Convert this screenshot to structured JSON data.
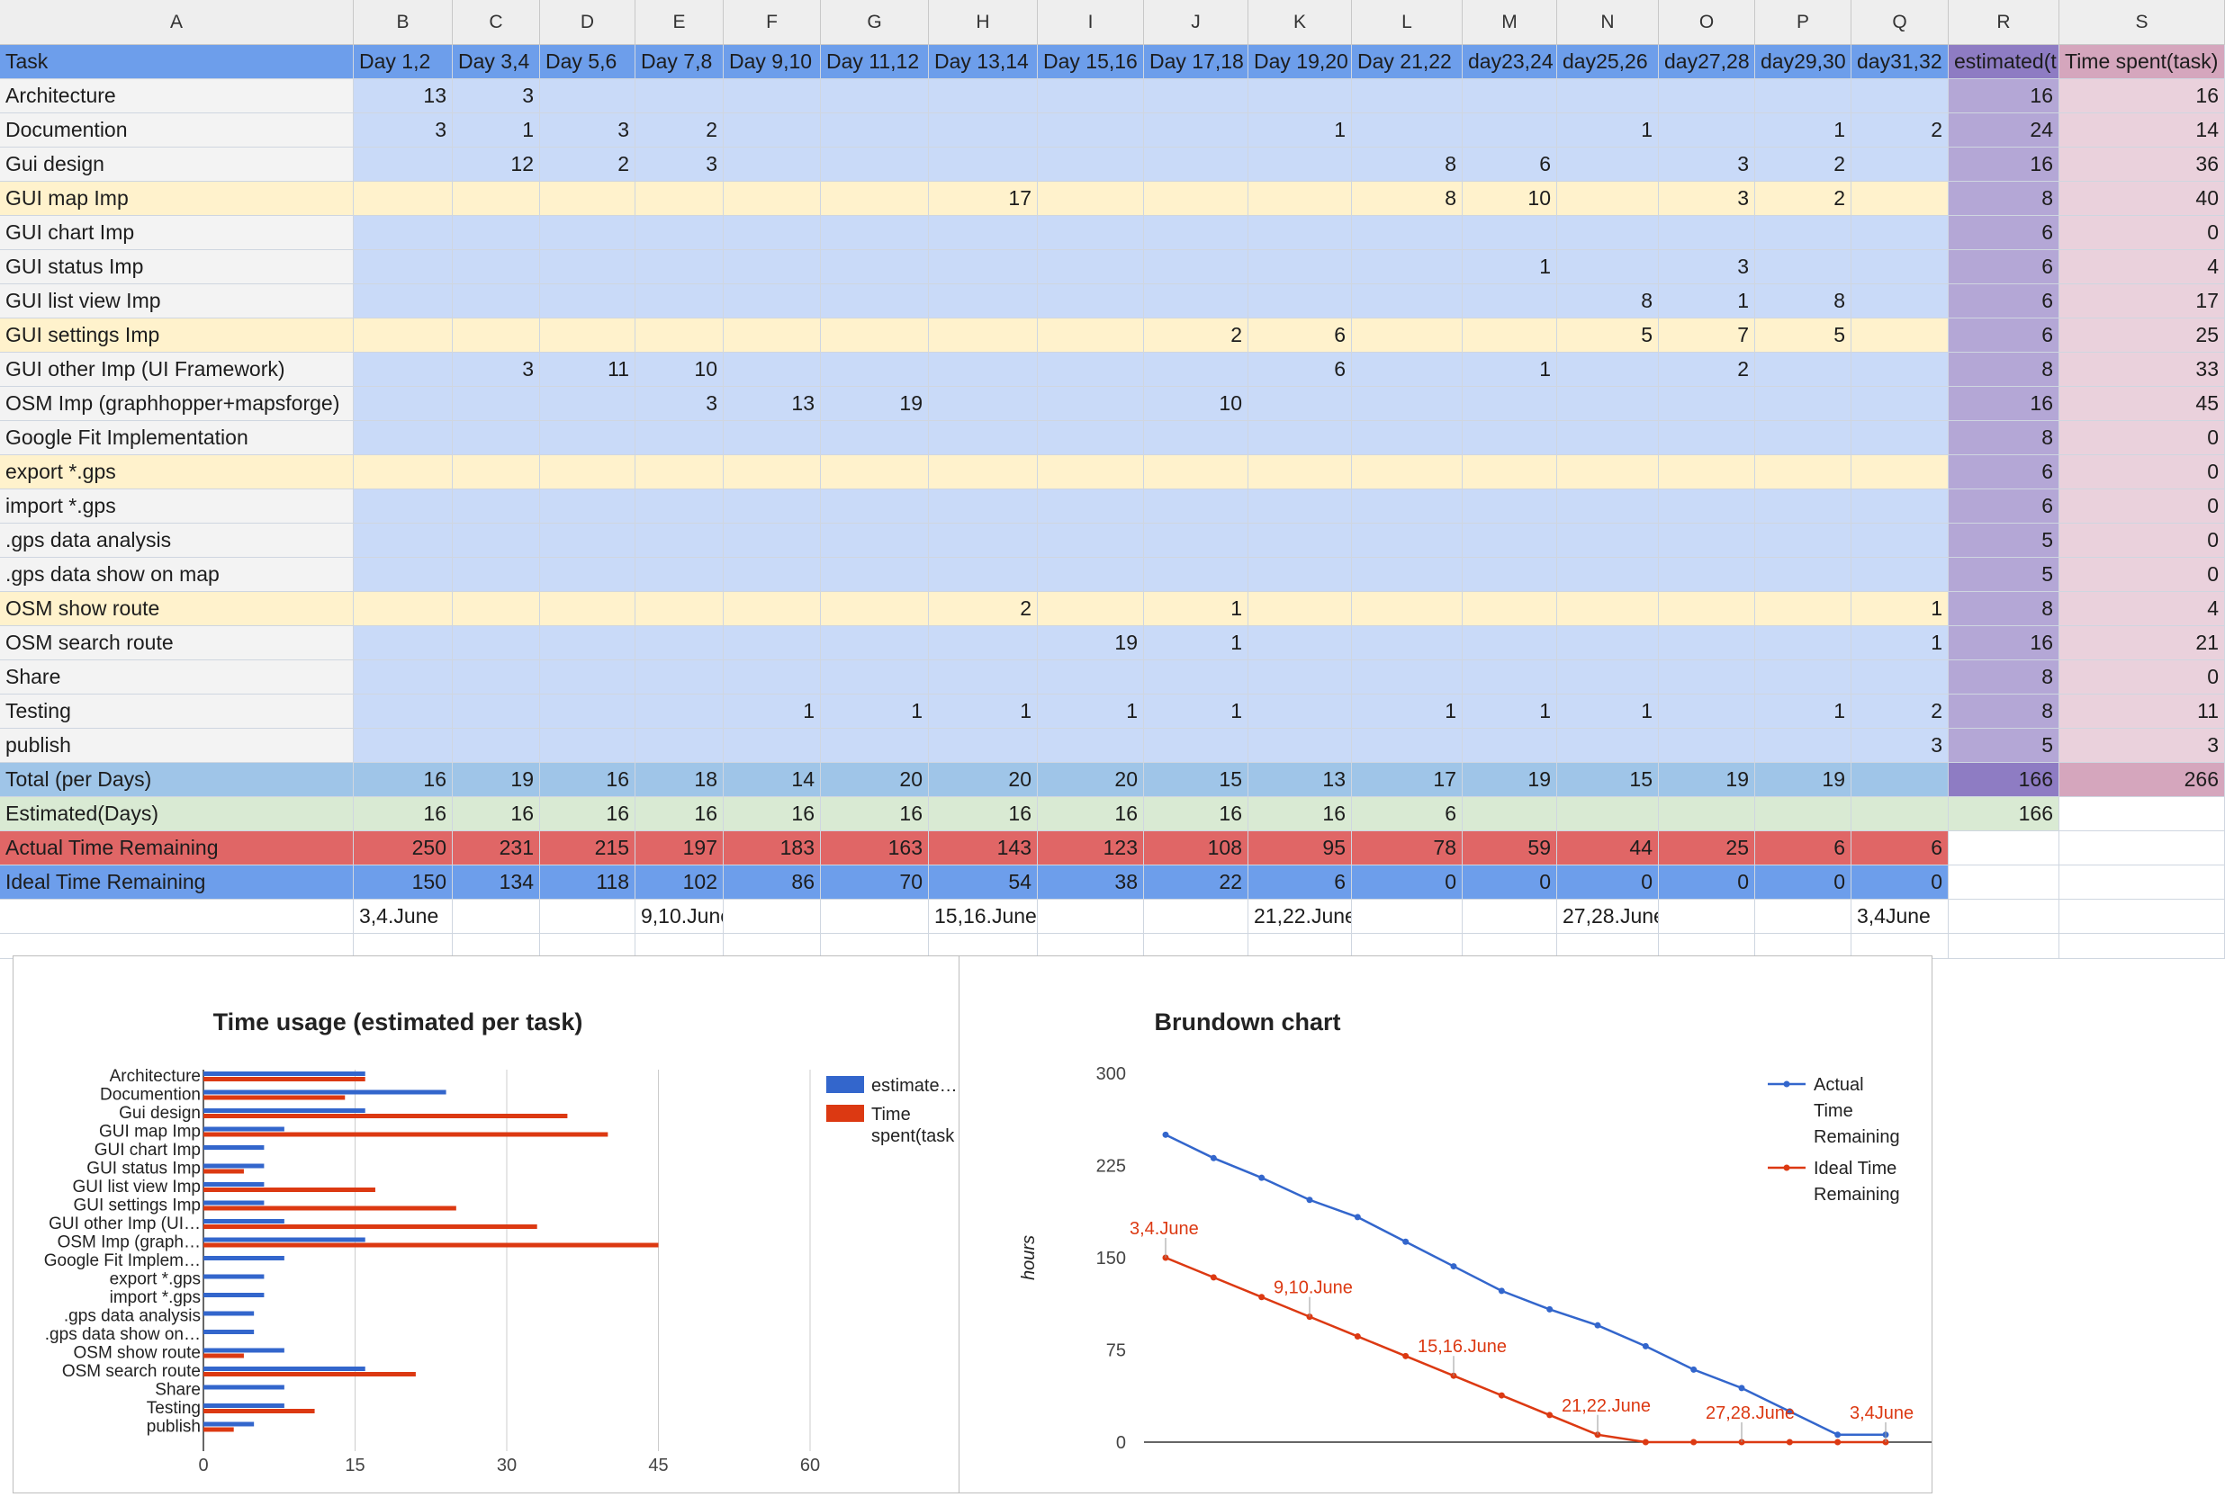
{
  "colors": {
    "header_bg": "#eeeeee",
    "task_header_row": "#6d9eeb",
    "data_blue": "#c9daf8",
    "data_yellow": "#fff2cc",
    "label_gray": "#f3f3f3",
    "estimated_col": "#b4a7d6",
    "estimated_total": "#8e7cc3",
    "spent_col": "#ead1dc",
    "spent_total": "#d5a6bd",
    "total_row": "#9fc5e8",
    "estimated_row": "#d9ead3",
    "actual_row": "#e06666",
    "ideal_row": "#6d9eeb",
    "series_blue": "#3366cc",
    "series_red": "#dc3912"
  },
  "columns": [
    "A",
    "B",
    "C",
    "D",
    "E",
    "F",
    "G",
    "H",
    "I",
    "J",
    "K",
    "L",
    "M",
    "N",
    "O",
    "P",
    "Q",
    "R",
    "S"
  ],
  "header_row": [
    "Task",
    "Day 1,2",
    "Day 3,4",
    "Day 5,6",
    "Day 7,8",
    "Day 9,10",
    "Day 11,12",
    "Day 13,14",
    "Day 15,16",
    "Day 17,18",
    "Day 19,20",
    "Day 21,22",
    "day23,24",
    "day25,26",
    "day27,28",
    "day29,30",
    "day31,32",
    "estimated(t",
    "Time spent(task)"
  ],
  "tasks": [
    {
      "name": "Architecture",
      "style": "blue",
      "days": [
        "13",
        "3",
        "",
        "",
        "",
        "",
        "",
        "",
        "",
        "",
        "",
        "",
        "",
        "",
        "",
        ""
      ],
      "estimated": "16",
      "spent": "16"
    },
    {
      "name": "Documention",
      "style": "blue",
      "days": [
        "3",
        "1",
        "3",
        "2",
        "",
        "",
        "",
        "",
        "",
        "1",
        "",
        "",
        "1",
        "",
        "1",
        "2"
      ],
      "estimated": "24",
      "spent": "14"
    },
    {
      "name": "Gui design",
      "style": "blue",
      "days": [
        "",
        "12",
        "2",
        "3",
        "",
        "",
        "",
        "",
        "",
        "",
        "8",
        "6",
        "",
        "3",
        "2",
        ""
      ],
      "estimated": "16",
      "spent": "36"
    },
    {
      "name": "GUI map Imp",
      "style": "yellow",
      "days": [
        "",
        "",
        "",
        "",
        "",
        "",
        "17",
        "",
        "",
        "",
        "8",
        "10",
        "",
        "3",
        "2",
        ""
      ],
      "estimated": "8",
      "spent": "40"
    },
    {
      "name": "GUI chart Imp",
      "style": "blue",
      "days": [
        "",
        "",
        "",
        "",
        "",
        "",
        "",
        "",
        "",
        "",
        "",
        "",
        "",
        "",
        "",
        ""
      ],
      "estimated": "6",
      "spent": "0"
    },
    {
      "name": "GUI status Imp",
      "style": "blue",
      "days": [
        "",
        "",
        "",
        "",
        "",
        "",
        "",
        "",
        "",
        "",
        "",
        "1",
        "",
        "3",
        "",
        ""
      ],
      "estimated": "6",
      "spent": "4"
    },
    {
      "name": "GUI list view Imp",
      "style": "blue",
      "days": [
        "",
        "",
        "",
        "",
        "",
        "",
        "",
        "",
        "",
        "",
        "",
        "",
        "8",
        "1",
        "8",
        ""
      ],
      "estimated": "6",
      "spent": "17"
    },
    {
      "name": "GUI settings Imp",
      "style": "yellow",
      "days": [
        "",
        "",
        "",
        "",
        "",
        "",
        "",
        "",
        "2",
        "6",
        "",
        "",
        "5",
        "7",
        "5",
        ""
      ],
      "estimated": "6",
      "spent": "25"
    },
    {
      "name": "GUI other Imp (UI Framework)",
      "style": "blue",
      "days": [
        "",
        "3",
        "11",
        "10",
        "",
        "",
        "",
        "",
        "",
        "6",
        "",
        "1",
        "",
        "2",
        "",
        ""
      ],
      "estimated": "8",
      "spent": "33"
    },
    {
      "name": "OSM Imp (graphhopper+mapsforge)",
      "style": "blue",
      "days": [
        "",
        "",
        "",
        "3",
        "13",
        "19",
        "",
        "",
        "10",
        "",
        "",
        "",
        "",
        "",
        "",
        ""
      ],
      "estimated": "16",
      "spent": "45"
    },
    {
      "name": "Google Fit Implementation",
      "style": "blue",
      "days": [
        "",
        "",
        "",
        "",
        "",
        "",
        "",
        "",
        "",
        "",
        "",
        "",
        "",
        "",
        "",
        ""
      ],
      "estimated": "8",
      "spent": "0"
    },
    {
      "name": "export *.gps",
      "style": "yellow",
      "days": [
        "",
        "",
        "",
        "",
        "",
        "",
        "",
        "",
        "",
        "",
        "",
        "",
        "",
        "",
        "",
        ""
      ],
      "estimated": "6",
      "spent": "0"
    },
    {
      "name": "import *.gps",
      "style": "blue",
      "days": [
        "",
        "",
        "",
        "",
        "",
        "",
        "",
        "",
        "",
        "",
        "",
        "",
        "",
        "",
        "",
        ""
      ],
      "estimated": "6",
      "spent": "0"
    },
    {
      "name": ".gps data analysis",
      "style": "blue",
      "days": [
        "",
        "",
        "",
        "",
        "",
        "",
        "",
        "",
        "",
        "",
        "",
        "",
        "",
        "",
        "",
        ""
      ],
      "estimated": "5",
      "spent": "0"
    },
    {
      "name": ".gps data show on map",
      "style": "blue",
      "days": [
        "",
        "",
        "",
        "",
        "",
        "",
        "",
        "",
        "",
        "",
        "",
        "",
        "",
        "",
        "",
        ""
      ],
      "estimated": "5",
      "spent": "0"
    },
    {
      "name": "OSM show route",
      "style": "yellow",
      "days": [
        "",
        "",
        "",
        "",
        "",
        "",
        "2",
        "",
        "1",
        "",
        "",
        "",
        "",
        "",
        "",
        "1"
      ],
      "estimated": "8",
      "spent": "4"
    },
    {
      "name": "OSM search route",
      "style": "blue",
      "days": [
        "",
        "",
        "",
        "",
        "",
        "",
        "",
        "19",
        "1",
        "",
        "",
        "",
        "",
        "",
        "",
        "1"
      ],
      "estimated": "16",
      "spent": "21"
    },
    {
      "name": "Share",
      "style": "blue",
      "days": [
        "",
        "",
        "",
        "",
        "",
        "",
        "",
        "",
        "",
        "",
        "",
        "",
        "",
        "",
        "",
        ""
      ],
      "estimated": "8",
      "spent": "0"
    },
    {
      "name": "Testing",
      "style": "blue",
      "days": [
        "",
        "",
        "",
        "",
        "1",
        "1",
        "1",
        "1",
        "1",
        "",
        "1",
        "1",
        "1",
        "",
        "1",
        "2"
      ],
      "estimated": "8",
      "spent": "11"
    },
    {
      "name": "publish",
      "style": "blue",
      "days": [
        "",
        "",
        "",
        "",
        "",
        "",
        "",
        "",
        "",
        "",
        "",
        "",
        "",
        "",
        "",
        "3"
      ],
      "estimated": "5",
      "spent": "3"
    }
  ],
  "summary_rows": [
    {
      "label": "Total (per Days)",
      "style": "total",
      "values": [
        "16",
        "19",
        "16",
        "18",
        "14",
        "20",
        "20",
        "20",
        "15",
        "13",
        "17",
        "19",
        "15",
        "19",
        "19",
        ""
      ],
      "r": "166",
      "s": "266"
    },
    {
      "label": "Estimated(Days)",
      "style": "estimated",
      "values": [
        "16",
        "16",
        "16",
        "16",
        "16",
        "16",
        "16",
        "16",
        "16",
        "16",
        "6",
        "",
        "",
        "",
        "",
        ""
      ],
      "r": "166",
      "s": ""
    },
    {
      "label": "Actual Time Remaining",
      "style": "actual",
      "values": [
        "250",
        "231",
        "215",
        "197",
        "183",
        "163",
        "143",
        "123",
        "108",
        "95",
        "78",
        "59",
        "44",
        "25",
        "6",
        "6"
      ],
      "r": "",
      "s": ""
    },
    {
      "label": "Ideal Time Remaining",
      "style": "ideal",
      "values": [
        "150",
        "134",
        "118",
        "102",
        "86",
        "70",
        "54",
        "38",
        "22",
        "6",
        "0",
        "0",
        "0",
        "0",
        "0",
        "0"
      ],
      "r": "",
      "s": ""
    }
  ],
  "date_row": [
    "",
    "3,4.June",
    "",
    "",
    "9,10.June",
    "",
    "",
    "15,16.June",
    "",
    "",
    "21,22.June",
    "",
    "",
    "27,28.June",
    "",
    "",
    "3,4June",
    "",
    ""
  ],
  "chart_data": [
    {
      "type": "bar",
      "orientation": "horizontal",
      "title": "Time usage (estimated per task)",
      "categories": [
        "Architecture",
        "Documention",
        "Gui design",
        "GUI map Imp",
        "GUI chart Imp",
        "GUI status Imp",
        "GUI list view Imp",
        "GUI settings Imp",
        "GUI other Imp (UI…",
        "OSM Imp (graph…",
        "Google Fit Implem…",
        "export *.gps",
        "import *.gps",
        ".gps data analysis",
        ".gps data show on…",
        "OSM show route",
        "OSM search route",
        "Share",
        "Testing",
        "publish"
      ],
      "series": [
        {
          "name": "estimate…",
          "color": "#3366cc",
          "values": [
            16,
            24,
            16,
            8,
            6,
            6,
            6,
            6,
            8,
            16,
            8,
            6,
            6,
            5,
            5,
            8,
            16,
            8,
            8,
            5
          ]
        },
        {
          "name": "Time spent(task",
          "color": "#dc3912",
          "values": [
            16,
            14,
            36,
            40,
            0,
            4,
            17,
            25,
            33,
            45,
            0,
            0,
            0,
            0,
            0,
            4,
            21,
            0,
            11,
            3
          ]
        }
      ],
      "xlim": [
        0,
        60
      ],
      "xticks": [
        "0",
        "15",
        "30",
        "45",
        "60"
      ],
      "grid": true,
      "legend": "right"
    },
    {
      "type": "line",
      "title": "Brundown chart",
      "ylabel": "hours",
      "ylim": [
        0,
        300
      ],
      "yticks": [
        "0",
        "75",
        "150",
        "225",
        "300"
      ],
      "x": [
        1,
        2,
        3,
        4,
        5,
        6,
        7,
        8,
        9,
        10,
        11,
        12,
        13,
        14,
        15,
        16
      ],
      "series": [
        {
          "name": "Actual Time Remaining",
          "color": "#3366cc",
          "values": [
            250,
            231,
            215,
            197,
            183,
            163,
            143,
            123,
            108,
            95,
            78,
            59,
            44,
            25,
            6,
            6
          ]
        },
        {
          "name": "Ideal Time Remaining",
          "color": "#dc3912",
          "values": [
            150,
            134,
            118,
            102,
            86,
            70,
            54,
            38,
            22,
            6,
            0,
            0,
            0,
            0,
            0,
            0
          ]
        }
      ],
      "annotations": [
        {
          "x": 1,
          "text": "3,4.June"
        },
        {
          "x": 4,
          "text": "9,10.June"
        },
        {
          "x": 7,
          "text": "15,16.June"
        },
        {
          "x": 10,
          "text": "21,22.June"
        },
        {
          "x": 13,
          "text": "27,28.June"
        },
        {
          "x": 16,
          "text": "3,4June"
        }
      ],
      "grid": false,
      "legend": "right"
    }
  ],
  "legend_left": {
    "item1": "estimate…",
    "item2a": "Time",
    "item2b": "spent(task"
  },
  "legend_right": {
    "a1": "Actual",
    "a2": "Time",
    "a3": "Remaining",
    "b1": "Ideal Time",
    "b2": "Remaining"
  }
}
